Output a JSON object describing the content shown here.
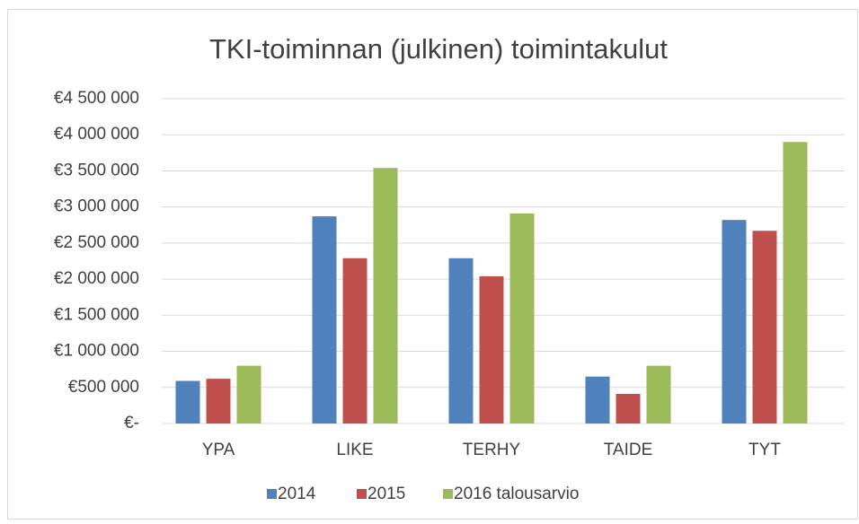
{
  "chart_data": {
    "type": "bar",
    "title": "TKI-toiminnan (julkinen) toimintakulut",
    "categories": [
      "YPA",
      "LIKE",
      "TERHY",
      "TAIDE",
      "TYT"
    ],
    "series": [
      {
        "name": "2014",
        "color": "#4f81bd",
        "values": [
          590000,
          2870000,
          2290000,
          650000,
          2820000
        ]
      },
      {
        "name": "2015",
        "color": "#c0504d",
        "values": [
          620000,
          2290000,
          2040000,
          410000,
          2670000
        ]
      },
      {
        "name": "2016 talousarvio",
        "color": "#9bbb59",
        "values": [
          800000,
          3540000,
          2910000,
          800000,
          3900000
        ]
      }
    ],
    "ylim": [
      0,
      4500000
    ],
    "yticks": [
      {
        "value": 0,
        "label": "€-"
      },
      {
        "value": 500000,
        "label": "€500 000"
      },
      {
        "value": 1000000,
        "label": "€1 000 000"
      },
      {
        "value": 1500000,
        "label": "€1 500 000"
      },
      {
        "value": 2000000,
        "label": "€2 000 000"
      },
      {
        "value": 2500000,
        "label": "€2 500 000"
      },
      {
        "value": 3000000,
        "label": "€3 000 000"
      },
      {
        "value": 3500000,
        "label": "€3 500 000"
      },
      {
        "value": 4000000,
        "label": "€4 000 000"
      },
      {
        "value": 4500000,
        "label": "€4 500 000"
      }
    ],
    "grid": true,
    "legend": "bottom"
  }
}
